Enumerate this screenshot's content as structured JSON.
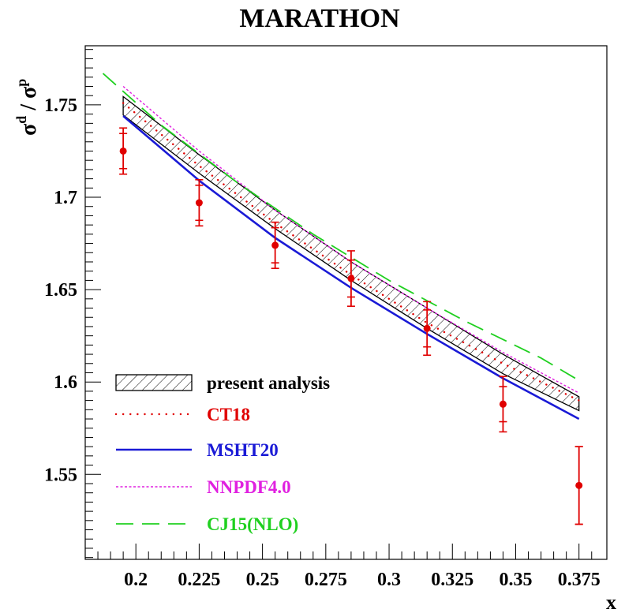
{
  "chart_data": {
    "type": "line",
    "title": "MARATHON",
    "xlabel": "x",
    "ylabel": "σ^d / σ^p",
    "ylabel_parts": {
      "base1": "σ",
      "sup1": "d",
      "slash": " / ",
      "base2": "σ",
      "sup2": "p"
    },
    "xlim": [
      0.18,
      0.386
    ],
    "ylim": [
      1.504,
      1.782
    ],
    "xticks": [
      {
        "v": 0.2,
        "label": "0.2"
      },
      {
        "v": 0.225,
        "label": "0.225"
      },
      {
        "v": 0.25,
        "label": "0.25"
      },
      {
        "v": 0.275,
        "label": "0.275"
      },
      {
        "v": 0.3,
        "label": "0.3"
      },
      {
        "v": 0.325,
        "label": "0.325"
      },
      {
        "v": 0.35,
        "label": "0.35"
      },
      {
        "v": 0.375,
        "label": "0.375"
      }
    ],
    "yticks": [
      {
        "v": 1.55,
        "label": "1.55"
      },
      {
        "v": 1.6,
        "label": "1.6"
      },
      {
        "v": 1.65,
        "label": "1.65"
      },
      {
        "v": 1.7,
        "label": "1.7"
      },
      {
        "v": 1.75,
        "label": "1.75"
      }
    ],
    "legend_placement": "bottom-left",
    "data_points": {
      "color": "#e00000",
      "points": [
        {
          "x": 0.195,
          "y": 1.725,
          "err_stat": 0.0095,
          "err_tot": 0.0125
        },
        {
          "x": 0.225,
          "y": 1.697,
          "err_stat": 0.0095,
          "err_tot": 0.0125
        },
        {
          "x": 0.255,
          "y": 1.674,
          "err_stat": 0.0095,
          "err_tot": 0.0125
        },
        {
          "x": 0.285,
          "y": 1.656,
          "err_stat": 0.01,
          "err_tot": 0.015
        },
        {
          "x": 0.315,
          "y": 1.629,
          "err_stat": 0.01,
          "err_tot": 0.0145
        },
        {
          "x": 0.345,
          "y": 1.588,
          "err_stat": 0.0095,
          "err_tot": 0.015
        },
        {
          "x": 0.375,
          "y": 1.544,
          "err_stat": 0.021,
          "err_tot": 0.021
        }
      ]
    },
    "band": {
      "name": "present analysis",
      "x": [
        0.195,
        0.225,
        0.255,
        0.285,
        0.315,
        0.345,
        0.375
      ],
      "upper": [
        1.7545,
        1.723,
        1.693,
        1.665,
        1.64,
        1.615,
        1.592
      ],
      "lower": [
        1.7445,
        1.713,
        1.683,
        1.655,
        1.629,
        1.6045,
        1.5845
      ]
    },
    "series": [
      {
        "name": "CT18",
        "color": "#e00000",
        "style": "dotted",
        "x": [
          0.195,
          0.225,
          0.255,
          0.285,
          0.315,
          0.345,
          0.375
        ],
        "y": [
          1.751,
          1.717,
          1.686,
          1.658,
          1.632,
          1.61,
          1.59
        ]
      },
      {
        "name": "MSHT20",
        "color": "#1a1ad6",
        "style": "solid",
        "x": [
          0.195,
          0.225,
          0.255,
          0.285,
          0.315,
          0.345,
          0.375
        ],
        "y": [
          1.744,
          1.709,
          1.678,
          1.651,
          1.626,
          1.602,
          1.58
        ]
      },
      {
        "name": "NNPDF4.0",
        "color": "#e020e0",
        "style": "dashed-fine",
        "x": [
          0.195,
          0.225,
          0.255,
          0.285,
          0.315,
          0.345,
          0.375
        ],
        "y": [
          1.76,
          1.725,
          1.693,
          1.665,
          1.64,
          1.616,
          1.594
        ]
      },
      {
        "name": "CJ15(NLO)",
        "color": "#20d020",
        "style": "dashed-long",
        "x": [
          0.187,
          0.21,
          0.24,
          0.27,
          0.3,
          0.33,
          0.36,
          0.376
        ],
        "y": [
          1.767,
          1.739,
          1.708,
          1.68,
          1.655,
          1.633,
          1.613,
          1.6
        ]
      }
    ]
  }
}
